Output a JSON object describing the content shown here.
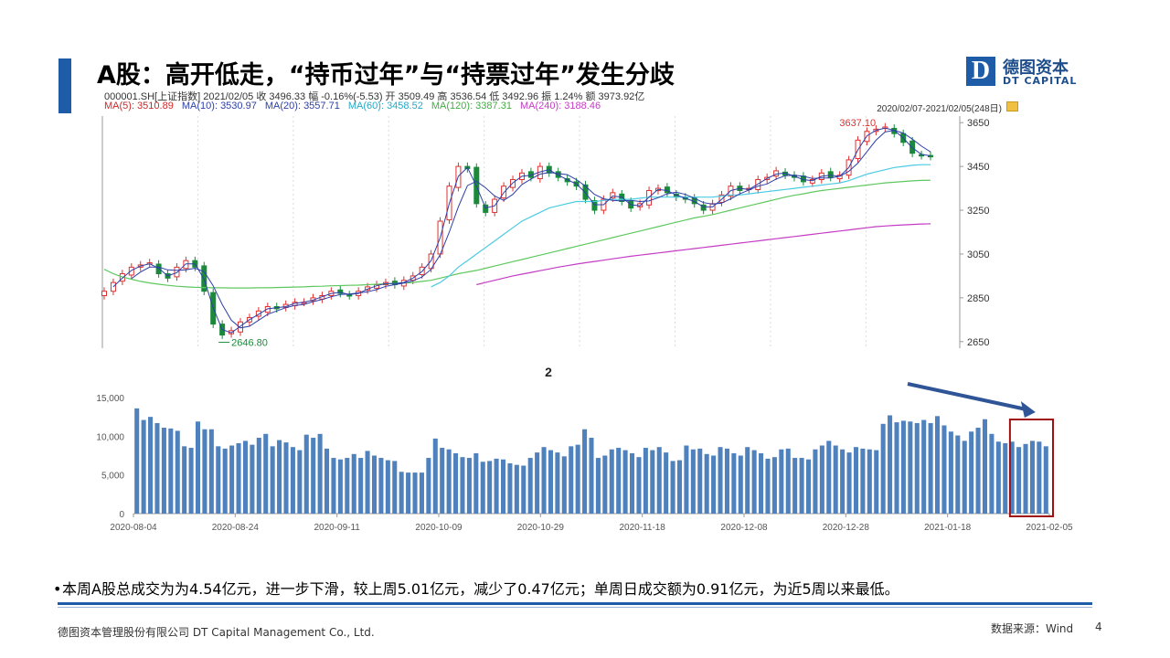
{
  "slide": {
    "title": "A股：高开低走，“持币过年”与“持票过年”发生分歧",
    "bullet": "本周A股总成交为为4.54亿元，进一步下滑，较上周5.01亿元，减少了0.47亿元；单周日成交额为0.91亿元，为近5周以来最低。",
    "footer_company": "德图资本管理股份有限公司  DT Capital Management  Co., Ltd.",
    "source": "数据来源：Wind",
    "page_number": "4"
  },
  "logo": {
    "mark": "D",
    "name_cn": "德图资本",
    "name_en": "DT CAPITAL",
    "color": "#1f5ca8"
  },
  "colors": {
    "up": "#e03030",
    "down": "#1a8a3a",
    "ma5": "#d02828",
    "ma10": "#2c3fa8",
    "ma20": "#2c3fa8",
    "ma60": "#4ccbe3",
    "ma120": "#5ec85e",
    "ma240": "#c43cc4",
    "volume_bar": "#4f81bd",
    "highlight_box": "#a01010",
    "arrow": "#2f5597"
  },
  "kline_info": {
    "line1": "000001.SH[上证指数]   2021/02/05  收 3496.33  幅 -0.16%(-5.53)  开 3509.49  高 3536.54  低 3492.96  振 1.24%  额 3973.92亿",
    "ma5": "MA(5): 3510.89",
    "ma10": "MA(10): 3530.97",
    "ma20": "MA(20): 3557.71",
    "ma60": "MA(60): 3458.52",
    "ma120": "MA(120): 3387.31",
    "ma240": "MA(240): 3188.46",
    "range": "2020/02/07-2021/02/05(248日)"
  },
  "chart_data": [
    {
      "type": "line",
      "title": "",
      "y_ticks": [
        "3650",
        "3450",
        "3250",
        "3050",
        "2850",
        "2650"
      ],
      "ylim": [
        2620,
        3680
      ],
      "annotations": [
        "3637.10",
        "2646.80"
      ],
      "index_close_path": [
        2880,
        2920,
        2960,
        2990,
        3000,
        3010,
        2960,
        2940,
        2990,
        3020,
        2990,
        2880,
        2730,
        2680,
        2700,
        2740,
        2760,
        2790,
        2810,
        2800,
        2820,
        2830,
        2830,
        2850,
        2860,
        2880,
        2870,
        2860,
        2880,
        2900,
        2910,
        2920,
        2910,
        2930,
        2950,
        2990,
        3050,
        3200,
        3360,
        3450,
        3440,
        3280,
        3240,
        3300,
        3360,
        3390,
        3420,
        3400,
        3450,
        3420,
        3400,
        3380,
        3360,
        3300,
        3250,
        3300,
        3330,
        3290,
        3260,
        3280,
        3340,
        3350,
        3330,
        3310,
        3300,
        3280,
        3250,
        3280,
        3320,
        3360,
        3340,
        3350,
        3390,
        3400,
        3430,
        3410,
        3400,
        3380,
        3390,
        3420,
        3400,
        3410,
        3480,
        3570,
        3610,
        3620,
        3630,
        3600,
        3560,
        3510,
        3500,
        3496
      ],
      "ma60_path": [
        null,
        null,
        null,
        null,
        null,
        null,
        null,
        null,
        null,
        null,
        null,
        null,
        null,
        null,
        null,
        null,
        null,
        null,
        null,
        null,
        null,
        null,
        null,
        null,
        null,
        null,
        null,
        null,
        null,
        null,
        null,
        null,
        null,
        null,
        null,
        null,
        2900,
        2920,
        2950,
        2990,
        3020,
        3050,
        3080,
        3110,
        3140,
        3170,
        3200,
        3220,
        3240,
        3260,
        3270,
        3280,
        3290,
        3290,
        3290,
        3295,
        3300,
        3300,
        3300,
        3305,
        3310,
        3310,
        3310,
        3310,
        3310,
        3310,
        3310,
        3310,
        3315,
        3320,
        3320,
        3325,
        3330,
        3335,
        3340,
        3345,
        3350,
        3355,
        3360,
        3365,
        3370,
        3375,
        3385,
        3400,
        3415,
        3425,
        3435,
        3445,
        3450,
        3455,
        3458,
        3458
      ],
      "ma120_path": [
        2980,
        2960,
        2945,
        2935,
        2925,
        2918,
        2912,
        2907,
        2903,
        2900,
        2898,
        2897,
        2896,
        2896,
        2895,
        2895,
        2895,
        2896,
        2896,
        2897,
        2898,
        2899,
        2900,
        2902,
        2903,
        2905,
        2906,
        2907,
        2908,
        2910,
        2912,
        2914,
        2916,
        2918,
        2920,
        2925,
        2930,
        2940,
        2950,
        2960,
        2968,
        2975,
        2985,
        2995,
        3005,
        3015,
        3025,
        3035,
        3045,
        3055,
        3065,
        3075,
        3085,
        3095,
        3105,
        3115,
        3125,
        3135,
        3145,
        3155,
        3165,
        3175,
        3185,
        3195,
        3205,
        3215,
        3222,
        3230,
        3240,
        3250,
        3260,
        3270,
        3280,
        3290,
        3300,
        3310,
        3318,
        3325,
        3333,
        3340,
        3345,
        3350,
        3355,
        3360,
        3365,
        3370,
        3375,
        3378,
        3381,
        3384,
        3386,
        3387
      ],
      "ma240_path": [
        null,
        null,
        null,
        null,
        null,
        null,
        null,
        null,
        null,
        null,
        null,
        null,
        null,
        null,
        null,
        null,
        null,
        null,
        null,
        null,
        null,
        null,
        null,
        null,
        null,
        null,
        null,
        null,
        null,
        null,
        null,
        null,
        null,
        null,
        null,
        null,
        null,
        null,
        null,
        null,
        null,
        2910,
        2920,
        2930,
        2940,
        2950,
        2958,
        2966,
        2974,
        2982,
        2990,
        2997,
        3004,
        3010,
        3016,
        3022,
        3028,
        3034,
        3040,
        3045,
        3050,
        3055,
        3060,
        3065,
        3070,
        3075,
        3080,
        3085,
        3090,
        3095,
        3100,
        3105,
        3110,
        3115,
        3120,
        3125,
        3130,
        3135,
        3140,
        3145,
        3150,
        3155,
        3160,
        3165,
        3170,
        3175,
        3178,
        3181,
        3183,
        3185,
        3187,
        3188
      ]
    },
    {
      "type": "bar",
      "title": "2",
      "ylim": [
        0,
        15000
      ],
      "y_ticks": [
        "0",
        "5,000",
        "10,000",
        "15,000"
      ],
      "x_ticks": [
        "2020-08-04",
        "2020-08-24",
        "2020-09-11",
        "2020-10-09",
        "2020-10-29",
        "2020-11-18",
        "2020-12-08",
        "2020-12-28",
        "2021-01-18",
        "2021-02-05"
      ],
      "values": [
        13600,
        12100,
        12500,
        11700,
        11100,
        11000,
        10700,
        8700,
        8500,
        11900,
        10900,
        10900,
        8700,
        8400,
        8800,
        9100,
        9400,
        8900,
        9800,
        10300,
        8700,
        9500,
        9200,
        8600,
        8200,
        10200,
        9800,
        10300,
        8400,
        7200,
        7000,
        7200,
        7700,
        7200,
        8100,
        7500,
        7200,
        6900,
        6800,
        5400,
        5300,
        5300,
        5300,
        7200,
        9700,
        8500,
        8300,
        7800,
        7300,
        7200,
        7800,
        6700,
        6800,
        7100,
        7000,
        6500,
        6300,
        6200,
        7200,
        7900,
        8600,
        8200,
        7900,
        7400,
        8700,
        8900,
        10900,
        9800,
        7200,
        7500,
        8300,
        8500,
        8200,
        7800,
        7300,
        8500,
        8200,
        8600,
        7900,
        6800,
        6900,
        8800,
        8300,
        8400,
        7700,
        7500,
        8600,
        8400,
        7800,
        7500,
        8600,
        8200,
        7800,
        7100,
        7300,
        8300,
        8400,
        7200,
        7200,
        7000,
        8300,
        8800,
        9400,
        8800,
        8300,
        7900,
        8600,
        8400,
        8300,
        8200,
        11600,
        12700,
        11800,
        12000,
        11900,
        11700,
        12100,
        11700,
        12600,
        11400,
        10600,
        10100,
        9400,
        10600,
        11100,
        12200,
        10300,
        9300,
        9100,
        9300,
        8600,
        9000,
        9400,
        9300,
        8700
      ],
      "highlight_last_n": 5
    }
  ]
}
